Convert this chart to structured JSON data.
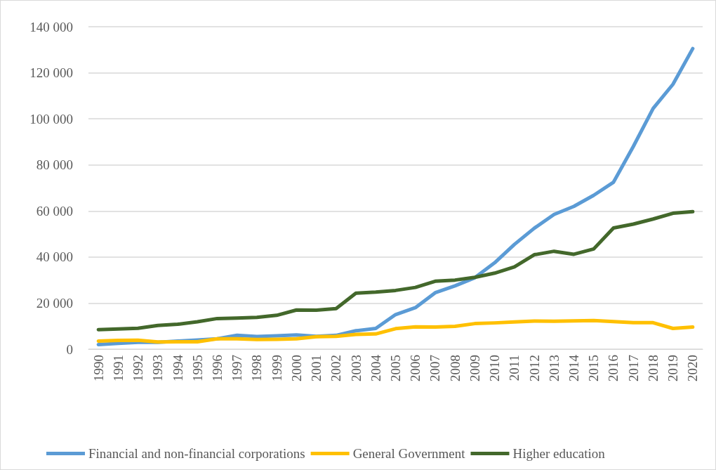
{
  "chart_data": {
    "type": "line",
    "categories": [
      "1990",
      "1991",
      "1992",
      "1993",
      "1994",
      "1995",
      "1996",
      "1997",
      "1998",
      "1999",
      "2000",
      "2001",
      "2002",
      "2003",
      "2004",
      "2005",
      "2006",
      "2007",
      "2008",
      "2009",
      "2010",
      "2011",
      "2012",
      "2013",
      "2014",
      "2015",
      "2016",
      "2017",
      "2018",
      "2019",
      "2020"
    ],
    "series": [
      {
        "name": "Financial and non-financial corporations",
        "color": "#5b9bd5",
        "values": [
          2000,
          2500,
          3000,
          3000,
          3500,
          4000,
          4500,
          6000,
          5500,
          5800,
          6200,
          5600,
          6000,
          8000,
          9000,
          15000,
          18000,
          24500,
          27500,
          31000,
          37500,
          45500,
          52500,
          58500,
          62000,
          66800,
          72500,
          88000,
          104500,
          115000,
          130500
        ]
      },
      {
        "name": "General Government",
        "color": "#ffc000",
        "values": [
          3500,
          3800,
          3900,
          3100,
          3200,
          3200,
          4500,
          4500,
          4200,
          4300,
          4500,
          5400,
          5600,
          6400,
          6600,
          8900,
          9700,
          9600,
          9900,
          11100,
          11400,
          11800,
          12200,
          12100,
          12300,
          12400,
          12000,
          11500,
          11500,
          9000,
          9600
        ]
      },
      {
        "name": "Higher education",
        "color": "#43682b",
        "values": [
          8500,
          8800,
          9100,
          10300,
          10800,
          11900,
          13300,
          13500,
          13800,
          14700,
          17000,
          16900,
          17600,
          24300,
          24800,
          25500,
          26800,
          29500,
          30000,
          31200,
          33000,
          35700,
          41000,
          42500,
          41200,
          43500,
          52600,
          54300,
          56500,
          59000,
          59700
        ]
      }
    ],
    "ylim": [
      0,
      140000
    ],
    "yticks": [
      {
        "value": 0,
        "label": "0"
      },
      {
        "value": 20000,
        "label": "20 000"
      },
      {
        "value": 40000,
        "label": "40 000"
      },
      {
        "value": 60000,
        "label": "60 000"
      },
      {
        "value": 80000,
        "label": "80 000"
      },
      {
        "value": 100000,
        "label": "100 000"
      },
      {
        "value": 120000,
        "label": "120 000"
      },
      {
        "value": 140000,
        "label": "140 000"
      }
    ],
    "grid": "y",
    "legend": "bottom",
    "marker": "none",
    "line_style": "solid"
  }
}
